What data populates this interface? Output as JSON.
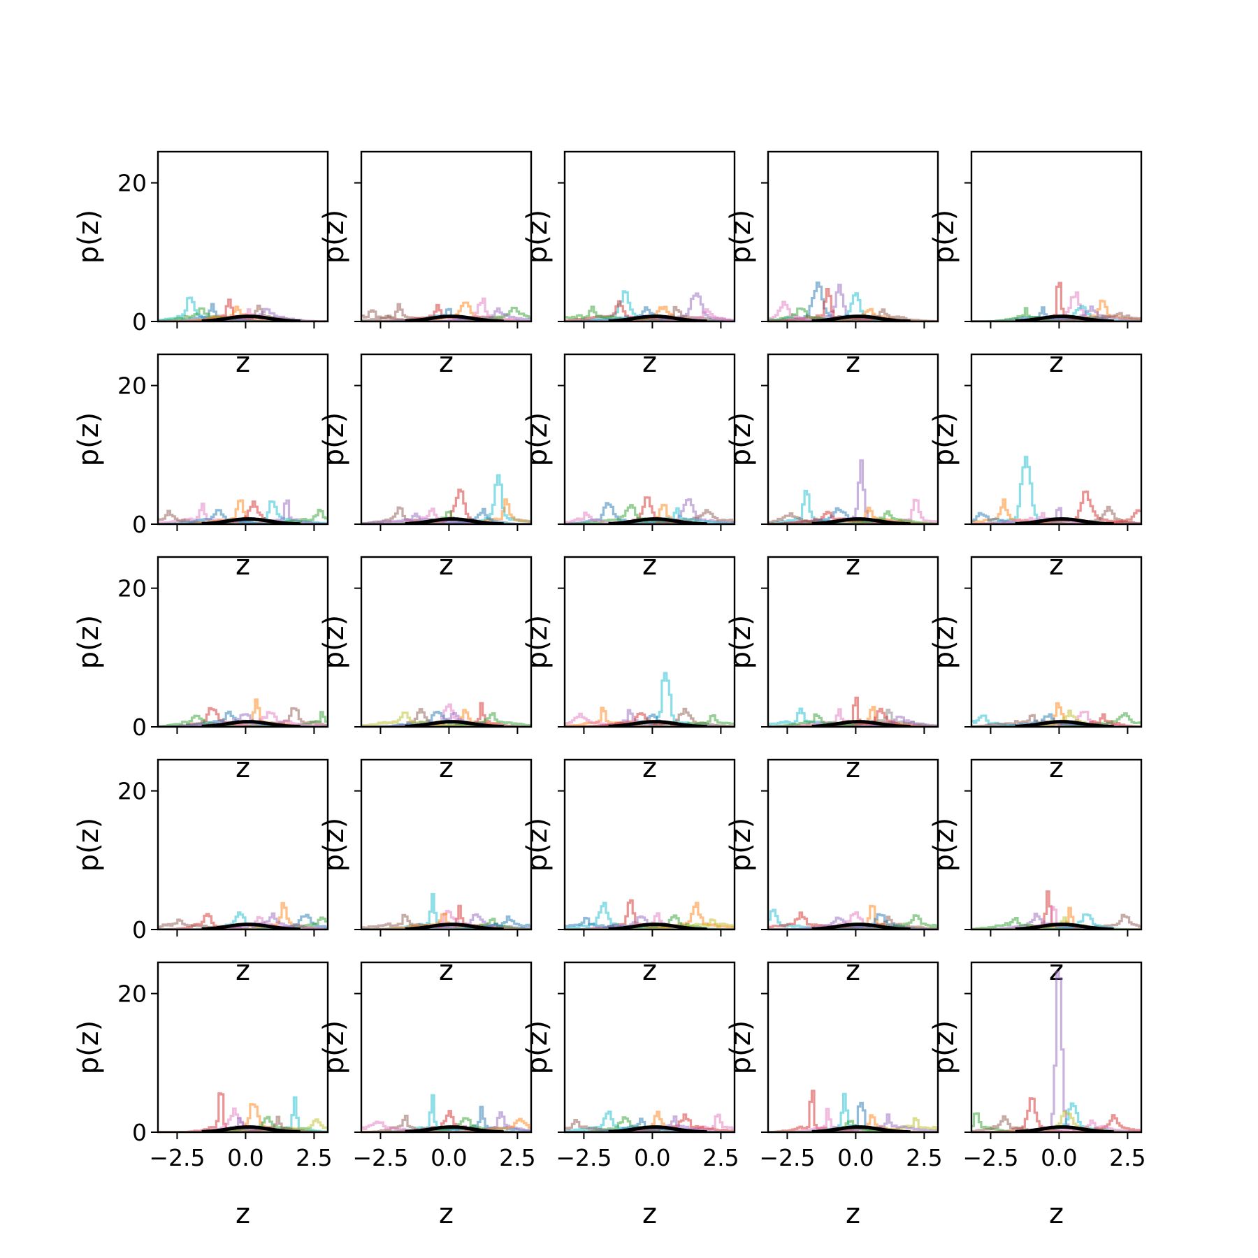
{
  "chart_data": {
    "type": "line",
    "layout": {
      "rows": 5,
      "cols": 5,
      "sharex": true,
      "sharey": true
    },
    "xlabel": "z",
    "ylabel": "p(z)",
    "xlim": [
      -3.2,
      3.0
    ],
    "ylim": [
      0,
      24.5
    ],
    "xticks": [
      -2.5,
      0.0,
      2.5
    ],
    "xtick_labels": [
      "−2.5",
      "0.0",
      "2.5"
    ],
    "yticks": [
      0,
      20
    ],
    "ytick_labels": [
      "0",
      "20"
    ],
    "grid": false,
    "legend": "none",
    "palette": [
      "#1f77b4",
      "#ff7f0e",
      "#2ca02c",
      "#d62728",
      "#9467bd",
      "#8c564b",
      "#e377c2",
      "#7f7f7f",
      "#bcbd22",
      "#17becf"
    ],
    "overall_color": "#000000",
    "panels": [
      {
        "peaks": [
          [
            -2.0,
            2.8,
            9
          ],
          [
            -1.2,
            1.6,
            0
          ],
          [
            -0.6,
            2.0,
            3
          ],
          [
            0.5,
            1.4,
            5
          ],
          [
            -1.6,
            1.0,
            2
          ],
          [
            0.1,
            1.2,
            6
          ],
          [
            -0.3,
            1.1,
            1
          ],
          [
            0.8,
            1.0,
            4
          ]
        ]
      },
      {
        "peaks": [
          [
            -1.8,
            2.0,
            5
          ],
          [
            -0.4,
            1.6,
            3
          ],
          [
            0.6,
            2.0,
            1
          ],
          [
            1.2,
            2.6,
            6
          ],
          [
            2.4,
            1.2,
            2
          ],
          [
            -2.8,
            0.8,
            5
          ],
          [
            0.0,
            1.2,
            0
          ],
          [
            1.8,
            1.0,
            4
          ]
        ]
      },
      {
        "peaks": [
          [
            -1.0,
            3.4,
            9
          ],
          [
            -1.2,
            2.0,
            3
          ],
          [
            1.6,
            3.6,
            4
          ],
          [
            -2.2,
            1.2,
            2
          ],
          [
            0.4,
            1.4,
            1
          ],
          [
            0.9,
            1.2,
            5
          ],
          [
            -0.2,
            1.1,
            0
          ],
          [
            2.0,
            0.8,
            6
          ]
        ]
      },
      {
        "peaks": [
          [
            -1.4,
            4.6,
            0
          ],
          [
            -0.6,
            4.8,
            4
          ],
          [
            -1.0,
            4.0,
            3
          ],
          [
            0.0,
            3.0,
            9
          ],
          [
            -2.6,
            2.2,
            6
          ],
          [
            -2.0,
            1.3,
            2
          ],
          [
            0.5,
            1.4,
            1
          ],
          [
            1.0,
            1.1,
            5
          ]
        ]
      },
      {
        "peaks": [
          [
            0.0,
            5.8,
            3
          ],
          [
            0.6,
            3.0,
            6
          ],
          [
            1.6,
            2.6,
            1
          ],
          [
            0.8,
            1.4,
            9
          ],
          [
            -0.6,
            1.1,
            0
          ],
          [
            1.2,
            1.2,
            4
          ],
          [
            -1.2,
            0.9,
            2
          ],
          [
            2.2,
            0.8,
            5
          ]
        ]
      },
      {
        "peaks": [
          [
            -1.6,
            2.0,
            6
          ],
          [
            -0.2,
            2.8,
            1
          ],
          [
            1.0,
            2.8,
            9
          ],
          [
            1.5,
            3.0,
            4
          ],
          [
            0.3,
            2.0,
            3
          ],
          [
            -2.8,
            1.0,
            5
          ],
          [
            2.7,
            1.4,
            2
          ],
          [
            -1.0,
            1.2,
            0
          ]
        ]
      },
      {
        "peaks": [
          [
            1.8,
            6.0,
            9
          ],
          [
            0.4,
            4.0,
            3
          ],
          [
            2.1,
            2.6,
            1
          ],
          [
            -1.8,
            1.6,
            5
          ],
          [
            -0.6,
            1.4,
            6
          ],
          [
            0.0,
            1.2,
            2
          ],
          [
            1.2,
            1.3,
            0
          ],
          [
            -1.2,
            1.0,
            4
          ]
        ]
      },
      {
        "peaks": [
          [
            -1.6,
            2.2,
            0
          ],
          [
            -0.2,
            3.0,
            3
          ],
          [
            1.3,
            2.8,
            4
          ],
          [
            0.4,
            2.4,
            1
          ],
          [
            -0.8,
            1.8,
            2
          ],
          [
            2.0,
            1.2,
            5
          ],
          [
            -2.4,
            0.9,
            6
          ],
          [
            0.9,
            1.4,
            9
          ]
        ]
      },
      {
        "peaks": [
          [
            0.2,
            8.6,
            4
          ],
          [
            -1.8,
            4.0,
            9
          ],
          [
            2.2,
            2.8,
            6
          ],
          [
            -0.6,
            1.6,
            0
          ],
          [
            0.5,
            1.8,
            1
          ],
          [
            -1.0,
            1.2,
            3
          ],
          [
            1.2,
            1.0,
            2
          ],
          [
            -2.4,
            0.8,
            5
          ]
        ]
      },
      {
        "peaks": [
          [
            -1.2,
            9.2,
            9
          ],
          [
            1.0,
            3.8,
            3
          ],
          [
            -2.0,
            2.4,
            1
          ],
          [
            0.0,
            2.2,
            4
          ],
          [
            1.8,
            1.6,
            5
          ],
          [
            2.9,
            1.4,
            3
          ],
          [
            -2.8,
            1.0,
            0
          ],
          [
            -0.6,
            1.2,
            6
          ]
        ]
      },
      {
        "peaks": [
          [
            0.4,
            3.8,
            1
          ],
          [
            -1.2,
            2.2,
            3
          ],
          [
            1.8,
            2.2,
            5
          ],
          [
            2.8,
            1.4,
            2
          ],
          [
            -0.6,
            1.4,
            0
          ],
          [
            0.9,
            1.6,
            6
          ],
          [
            -1.8,
            1.0,
            2
          ],
          [
            0.0,
            1.2,
            4
          ]
        ]
      },
      {
        "peaks": [
          [
            0.0,
            2.8,
            6
          ],
          [
            1.2,
            2.6,
            3
          ],
          [
            -1.0,
            1.8,
            5
          ],
          [
            0.6,
            1.6,
            1
          ],
          [
            -0.4,
            1.4,
            0
          ],
          [
            1.6,
            1.2,
            2
          ],
          [
            -1.6,
            1.1,
            8
          ],
          [
            0.2,
            1.3,
            4
          ]
        ]
      },
      {
        "peaks": [
          [
            0.5,
            7.6,
            9
          ],
          [
            -1.8,
            2.6,
            1
          ],
          [
            -0.8,
            1.8,
            4
          ],
          [
            1.2,
            1.6,
            5
          ],
          [
            2.2,
            1.4,
            2
          ],
          [
            -2.6,
            1.0,
            6
          ],
          [
            0.0,
            1.2,
            0
          ],
          [
            -0.4,
            1.4,
            3
          ]
        ]
      },
      {
        "peaks": [
          [
            0.0,
            4.4,
            3
          ],
          [
            -2.0,
            1.8,
            9
          ],
          [
            0.6,
            2.4,
            1
          ],
          [
            1.2,
            2.2,
            7
          ],
          [
            -0.6,
            1.6,
            6
          ],
          [
            0.9,
            1.8,
            3
          ],
          [
            -1.4,
            1.2,
            2
          ],
          [
            1.6,
            1.0,
            4
          ]
        ]
      },
      {
        "peaks": [
          [
            0.0,
            2.6,
            1
          ],
          [
            -2.8,
            1.0,
            9
          ],
          [
            0.9,
            1.8,
            6
          ],
          [
            1.6,
            1.6,
            3
          ],
          [
            -1.0,
            1.0,
            5
          ],
          [
            2.4,
            1.2,
            2
          ],
          [
            0.4,
            1.4,
            8
          ],
          [
            -0.4,
            1.0,
            0
          ]
        ]
      },
      {
        "peaks": [
          [
            -1.4,
            1.8,
            3
          ],
          [
            -0.2,
            1.8,
            9
          ],
          [
            1.4,
            3.0,
            1
          ],
          [
            2.2,
            1.6,
            0
          ],
          [
            -2.4,
            1.0,
            5
          ],
          [
            0.5,
            1.4,
            6
          ],
          [
            2.8,
            1.0,
            2
          ],
          [
            1.0,
            1.2,
            4
          ]
        ]
      },
      {
        "peaks": [
          [
            -0.6,
            3.8,
            9
          ],
          [
            0.4,
            2.4,
            3
          ],
          [
            -1.6,
            1.4,
            5
          ],
          [
            1.0,
            1.6,
            4
          ],
          [
            0.0,
            1.8,
            6
          ],
          [
            1.6,
            1.2,
            2
          ],
          [
            -0.2,
            1.4,
            1
          ],
          [
            2.2,
            1.0,
            0
          ]
        ]
      },
      {
        "peaks": [
          [
            -0.8,
            4.4,
            3
          ],
          [
            -1.8,
            3.0,
            9
          ],
          [
            1.6,
            2.6,
            1
          ],
          [
            0.2,
            1.6,
            6
          ],
          [
            -0.4,
            1.4,
            4
          ],
          [
            0.8,
            1.2,
            2
          ],
          [
            -2.4,
            1.0,
            0
          ],
          [
            2.2,
            1.0,
            8
          ]
        ]
      },
      {
        "peaks": [
          [
            0.6,
            3.4,
            1
          ],
          [
            -3.0,
            2.0,
            9
          ],
          [
            -2.0,
            1.4,
            3
          ],
          [
            0.0,
            1.6,
            6
          ],
          [
            1.2,
            1.4,
            5
          ],
          [
            2.2,
            1.2,
            2
          ],
          [
            0.9,
            1.6,
            0
          ],
          [
            -0.6,
            1.0,
            4
          ]
        ]
      },
      {
        "peaks": [
          [
            -0.4,
            5.4,
            3
          ],
          [
            -0.2,
            2.8,
            6
          ],
          [
            0.4,
            2.2,
            1
          ],
          [
            2.4,
            1.4,
            5
          ],
          [
            -0.8,
            1.4,
            4
          ],
          [
            1.0,
            1.6,
            9
          ],
          [
            -1.6,
            1.0,
            2
          ],
          [
            0.2,
            1.2,
            8
          ]
        ]
      },
      {
        "peaks": [
          [
            -0.9,
            6.6,
            3
          ],
          [
            1.8,
            3.8,
            9
          ],
          [
            0.3,
            3.4,
            1
          ],
          [
            -0.4,
            2.4,
            6
          ],
          [
            0.8,
            1.6,
            2
          ],
          [
            -0.2,
            1.4,
            4
          ],
          [
            2.6,
            1.0,
            8
          ],
          [
            1.2,
            1.2,
            5
          ]
        ]
      },
      {
        "peaks": [
          [
            -0.6,
            4.4,
            9
          ],
          [
            1.2,
            2.8,
            0
          ],
          [
            0.0,
            2.2,
            3
          ],
          [
            1.9,
            2.0,
            4
          ],
          [
            -1.6,
            1.6,
            5
          ],
          [
            0.6,
            1.4,
            2
          ],
          [
            2.6,
            1.0,
            1
          ],
          [
            -2.6,
            0.8,
            6
          ]
        ]
      },
      {
        "peaks": [
          [
            -1.6,
            2.2,
            9
          ],
          [
            0.2,
            2.4,
            1
          ],
          [
            2.4,
            1.8,
            6
          ],
          [
            1.2,
            1.6,
            3
          ],
          [
            -1.0,
            1.4,
            2
          ],
          [
            -2.8,
            1.0,
            5
          ],
          [
            0.8,
            1.2,
            4
          ],
          [
            -0.4,
            1.0,
            0
          ]
        ]
      },
      {
        "peaks": [
          [
            -1.6,
            5.8,
            3
          ],
          [
            -0.4,
            4.2,
            9
          ],
          [
            0.2,
            4.0,
            0
          ],
          [
            -1.0,
            2.6,
            6
          ],
          [
            0.6,
            2.0,
            1
          ],
          [
            2.2,
            1.4,
            8
          ],
          [
            1.2,
            1.6,
            4
          ],
          [
            -0.2,
            1.2,
            2
          ]
        ]
      },
      {
        "peaks": [
          [
            0.0,
            23.2,
            4
          ],
          [
            0.5,
            3.8,
            9
          ],
          [
            -1.0,
            4.6,
            3
          ],
          [
            -3.0,
            2.4,
            2
          ],
          [
            -2.0,
            1.4,
            5
          ],
          [
            0.3,
            2.4,
            8
          ],
          [
            2.0,
            1.6,
            3
          ],
          [
            1.2,
            1.0,
            6
          ]
        ]
      }
    ]
  }
}
